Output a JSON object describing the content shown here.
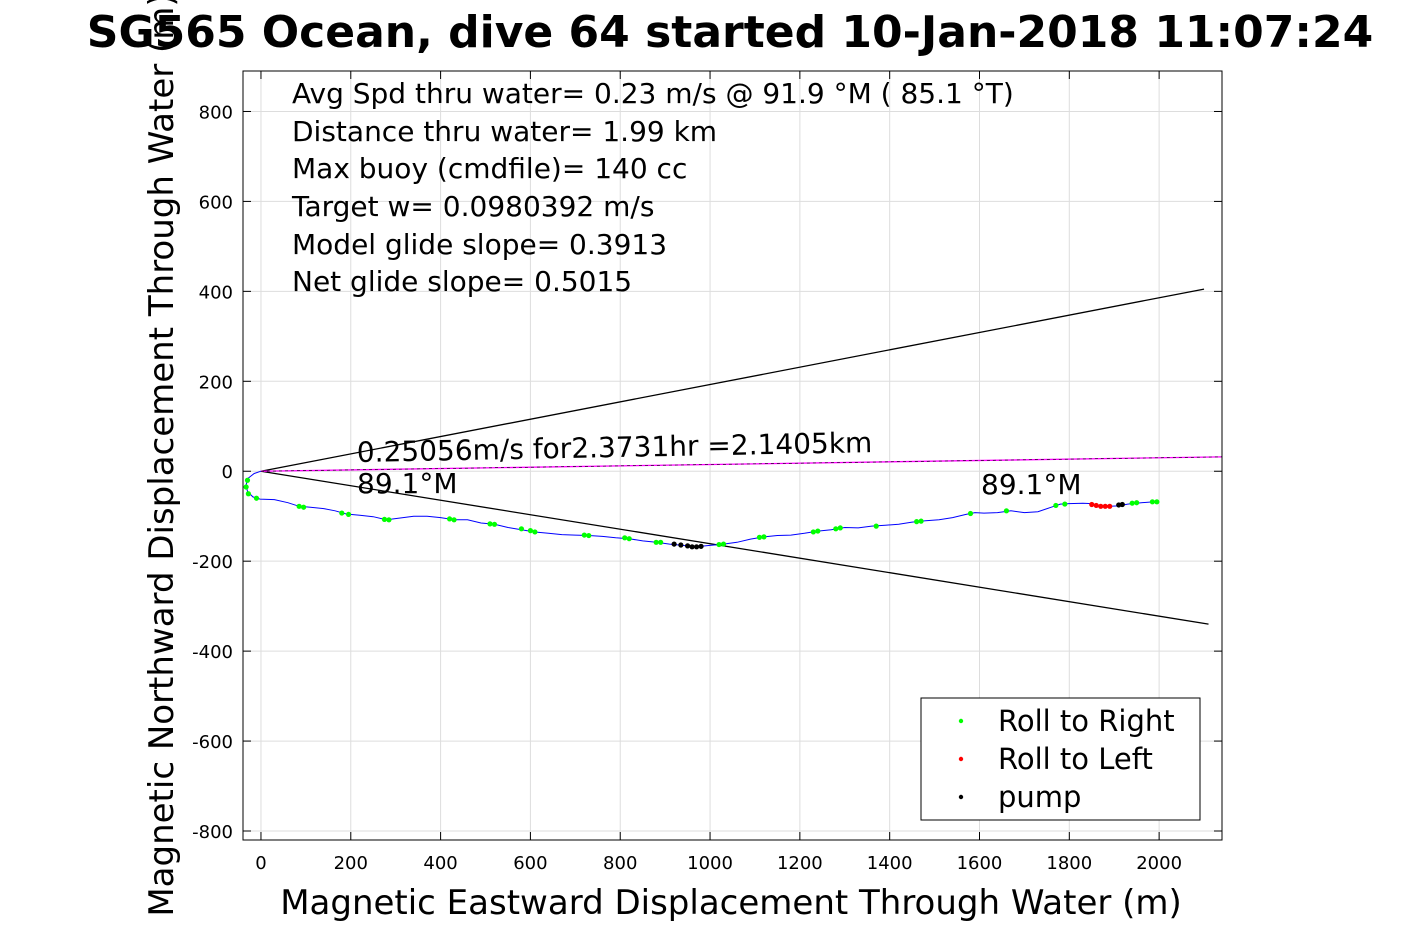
{
  "chart_data": {
    "type": "line",
    "title": "SG565 Ocean, dive 64 started 10-Jan-2018 11:07:24",
    "xlabel": "Magnetic Eastward Displacement Through Water (m)",
    "ylabel": "Magnetic Northward Displacement Through Water (m)",
    "xlim": [
      -40,
      2140
    ],
    "ylim": [
      -820,
      890
    ],
    "xticks": [
      0,
      200,
      400,
      600,
      800,
      1000,
      1200,
      1400,
      1600,
      1800,
      2000
    ],
    "yticks": [
      -800,
      -600,
      -400,
      -200,
      0,
      200,
      400,
      600,
      800
    ],
    "ytick_labels": [
      "-800",
      "-600",
      "-400",
      "-200",
      "0",
      "200",
      "400",
      "600",
      "800"
    ],
    "grid": true,
    "stats_text": [
      "Avg Spd thru water=  0.23 m/s @  91.9 °M ( 85.1 °T)",
      "Distance thru water=  1.99 km",
      "Max buoy (cmdfile)= 140 cc",
      "Target w= 0.0980392 m/s",
      "Model glide slope= 0.3913",
      "Net glide slope= 0.5015"
    ],
    "annotations": {
      "speed": "0.25056m/s for2.3731hr =2.1405km",
      "heading_left": "89.1°M",
      "heading_right": "89.1°M"
    },
    "colors": {
      "track": "#0000ff",
      "roll_right": "#00ff00",
      "roll_left": "#ff0000",
      "pump": "#000000",
      "heading_line": "#ff00ff",
      "envelope": "#000000",
      "grid": "#dddddd"
    },
    "track": [
      [
        0,
        0
      ],
      [
        -15,
        -5
      ],
      [
        -28,
        -15
      ],
      [
        -33,
        -30
      ],
      [
        -30,
        -45
      ],
      [
        -18,
        -57
      ],
      [
        -2,
        -62
      ],
      [
        30,
        -63
      ],
      [
        60,
        -70
      ],
      [
        85,
        -78
      ],
      [
        110,
        -80
      ],
      [
        140,
        -83
      ],
      [
        165,
        -88
      ],
      [
        190,
        -95
      ],
      [
        220,
        -98
      ],
      [
        250,
        -101
      ],
      [
        280,
        -108
      ],
      [
        310,
        -104
      ],
      [
        340,
        -100
      ],
      [
        370,
        -100
      ],
      [
        400,
        -103
      ],
      [
        430,
        -108
      ],
      [
        460,
        -108
      ],
      [
        490,
        -115
      ],
      [
        520,
        -118
      ],
      [
        550,
        -125
      ],
      [
        580,
        -130
      ],
      [
        610,
        -135
      ],
      [
        640,
        -138
      ],
      [
        670,
        -141
      ],
      [
        700,
        -142
      ],
      [
        730,
        -143
      ],
      [
        760,
        -145
      ],
      [
        790,
        -148
      ],
      [
        820,
        -150
      ],
      [
        850,
        -155
      ],
      [
        880,
        -158
      ],
      [
        910,
        -162
      ],
      [
        940,
        -165
      ],
      [
        960,
        -168
      ],
      [
        980,
        -167
      ],
      [
        1000,
        -165
      ],
      [
        1030,
        -162
      ],
      [
        1060,
        -158
      ],
      [
        1090,
        -151
      ],
      [
        1120,
        -146
      ],
      [
        1150,
        -143
      ],
      [
        1180,
        -142
      ],
      [
        1210,
        -138
      ],
      [
        1240,
        -133
      ],
      [
        1270,
        -130
      ],
      [
        1300,
        -125
      ],
      [
        1330,
        -126
      ],
      [
        1360,
        -122
      ],
      [
        1390,
        -120
      ],
      [
        1420,
        -118
      ],
      [
        1450,
        -113
      ],
      [
        1480,
        -110
      ],
      [
        1510,
        -108
      ],
      [
        1540,
        -103
      ],
      [
        1570,
        -96
      ],
      [
        1590,
        -92
      ],
      [
        1610,
        -93
      ],
      [
        1640,
        -92
      ],
      [
        1670,
        -88
      ],
      [
        1700,
        -92
      ],
      [
        1730,
        -90
      ],
      [
        1760,
        -80
      ],
      [
        1780,
        -73
      ],
      [
        1800,
        -72
      ],
      [
        1830,
        -71
      ],
      [
        1850,
        -72
      ],
      [
        1870,
        -78
      ],
      [
        1890,
        -78
      ],
      [
        1910,
        -77
      ],
      [
        1930,
        -73
      ],
      [
        1960,
        -70
      ],
      [
        1990,
        -68
      ]
    ],
    "heading_line": {
      "from": [
        0,
        0
      ],
      "to": [
        2140,
        32
      ]
    },
    "envelope_upper": {
      "from": [
        0,
        0
      ],
      "to": [
        2100,
        405
      ]
    },
    "envelope_lower": {
      "from": [
        0,
        0
      ],
      "to": [
        2110,
        -340
      ]
    },
    "series": [
      {
        "name": "Roll to Right",
        "points": [
          [
            -30,
            -20
          ],
          [
            -33,
            -35
          ],
          [
            -28,
            -50
          ],
          [
            -10,
            -60
          ],
          [
            85,
            -78
          ],
          [
            95,
            -80
          ],
          [
            180,
            -93
          ],
          [
            195,
            -96
          ],
          [
            275,
            -107
          ],
          [
            285,
            -108
          ],
          [
            420,
            -106
          ],
          [
            430,
            -108
          ],
          [
            510,
            -117
          ],
          [
            520,
            -118
          ],
          [
            580,
            -128
          ],
          [
            600,
            -132
          ],
          [
            610,
            -135
          ],
          [
            720,
            -142
          ],
          [
            730,
            -143
          ],
          [
            810,
            -148
          ],
          [
            820,
            -150
          ],
          [
            880,
            -158
          ],
          [
            890,
            -158
          ],
          [
            1020,
            -163
          ],
          [
            1030,
            -162
          ],
          [
            1110,
            -147
          ],
          [
            1120,
            -146
          ],
          [
            1230,
            -135
          ],
          [
            1240,
            -133
          ],
          [
            1280,
            -128
          ],
          [
            1290,
            -126
          ],
          [
            1370,
            -122
          ],
          [
            1460,
            -112
          ],
          [
            1470,
            -111
          ],
          [
            1580,
            -94
          ],
          [
            1660,
            -88
          ],
          [
            1770,
            -76
          ],
          [
            1790,
            -73
          ],
          [
            1940,
            -71
          ],
          [
            1950,
            -70
          ],
          [
            1985,
            -68
          ],
          [
            1995,
            -68
          ]
        ]
      },
      {
        "name": "Roll to Left",
        "points": [
          [
            1850,
            -74
          ],
          [
            1860,
            -76
          ],
          [
            1870,
            -78
          ],
          [
            1880,
            -78
          ],
          [
            1890,
            -78
          ]
        ]
      },
      {
        "name": "pump",
        "points": [
          [
            920,
            -162
          ],
          [
            935,
            -164
          ],
          [
            950,
            -166
          ],
          [
            960,
            -168
          ],
          [
            970,
            -168
          ],
          [
            980,
            -167
          ],
          [
            1910,
            -75
          ],
          [
            1918,
            -74
          ]
        ]
      }
    ],
    "legend_position": "bottom-right"
  }
}
